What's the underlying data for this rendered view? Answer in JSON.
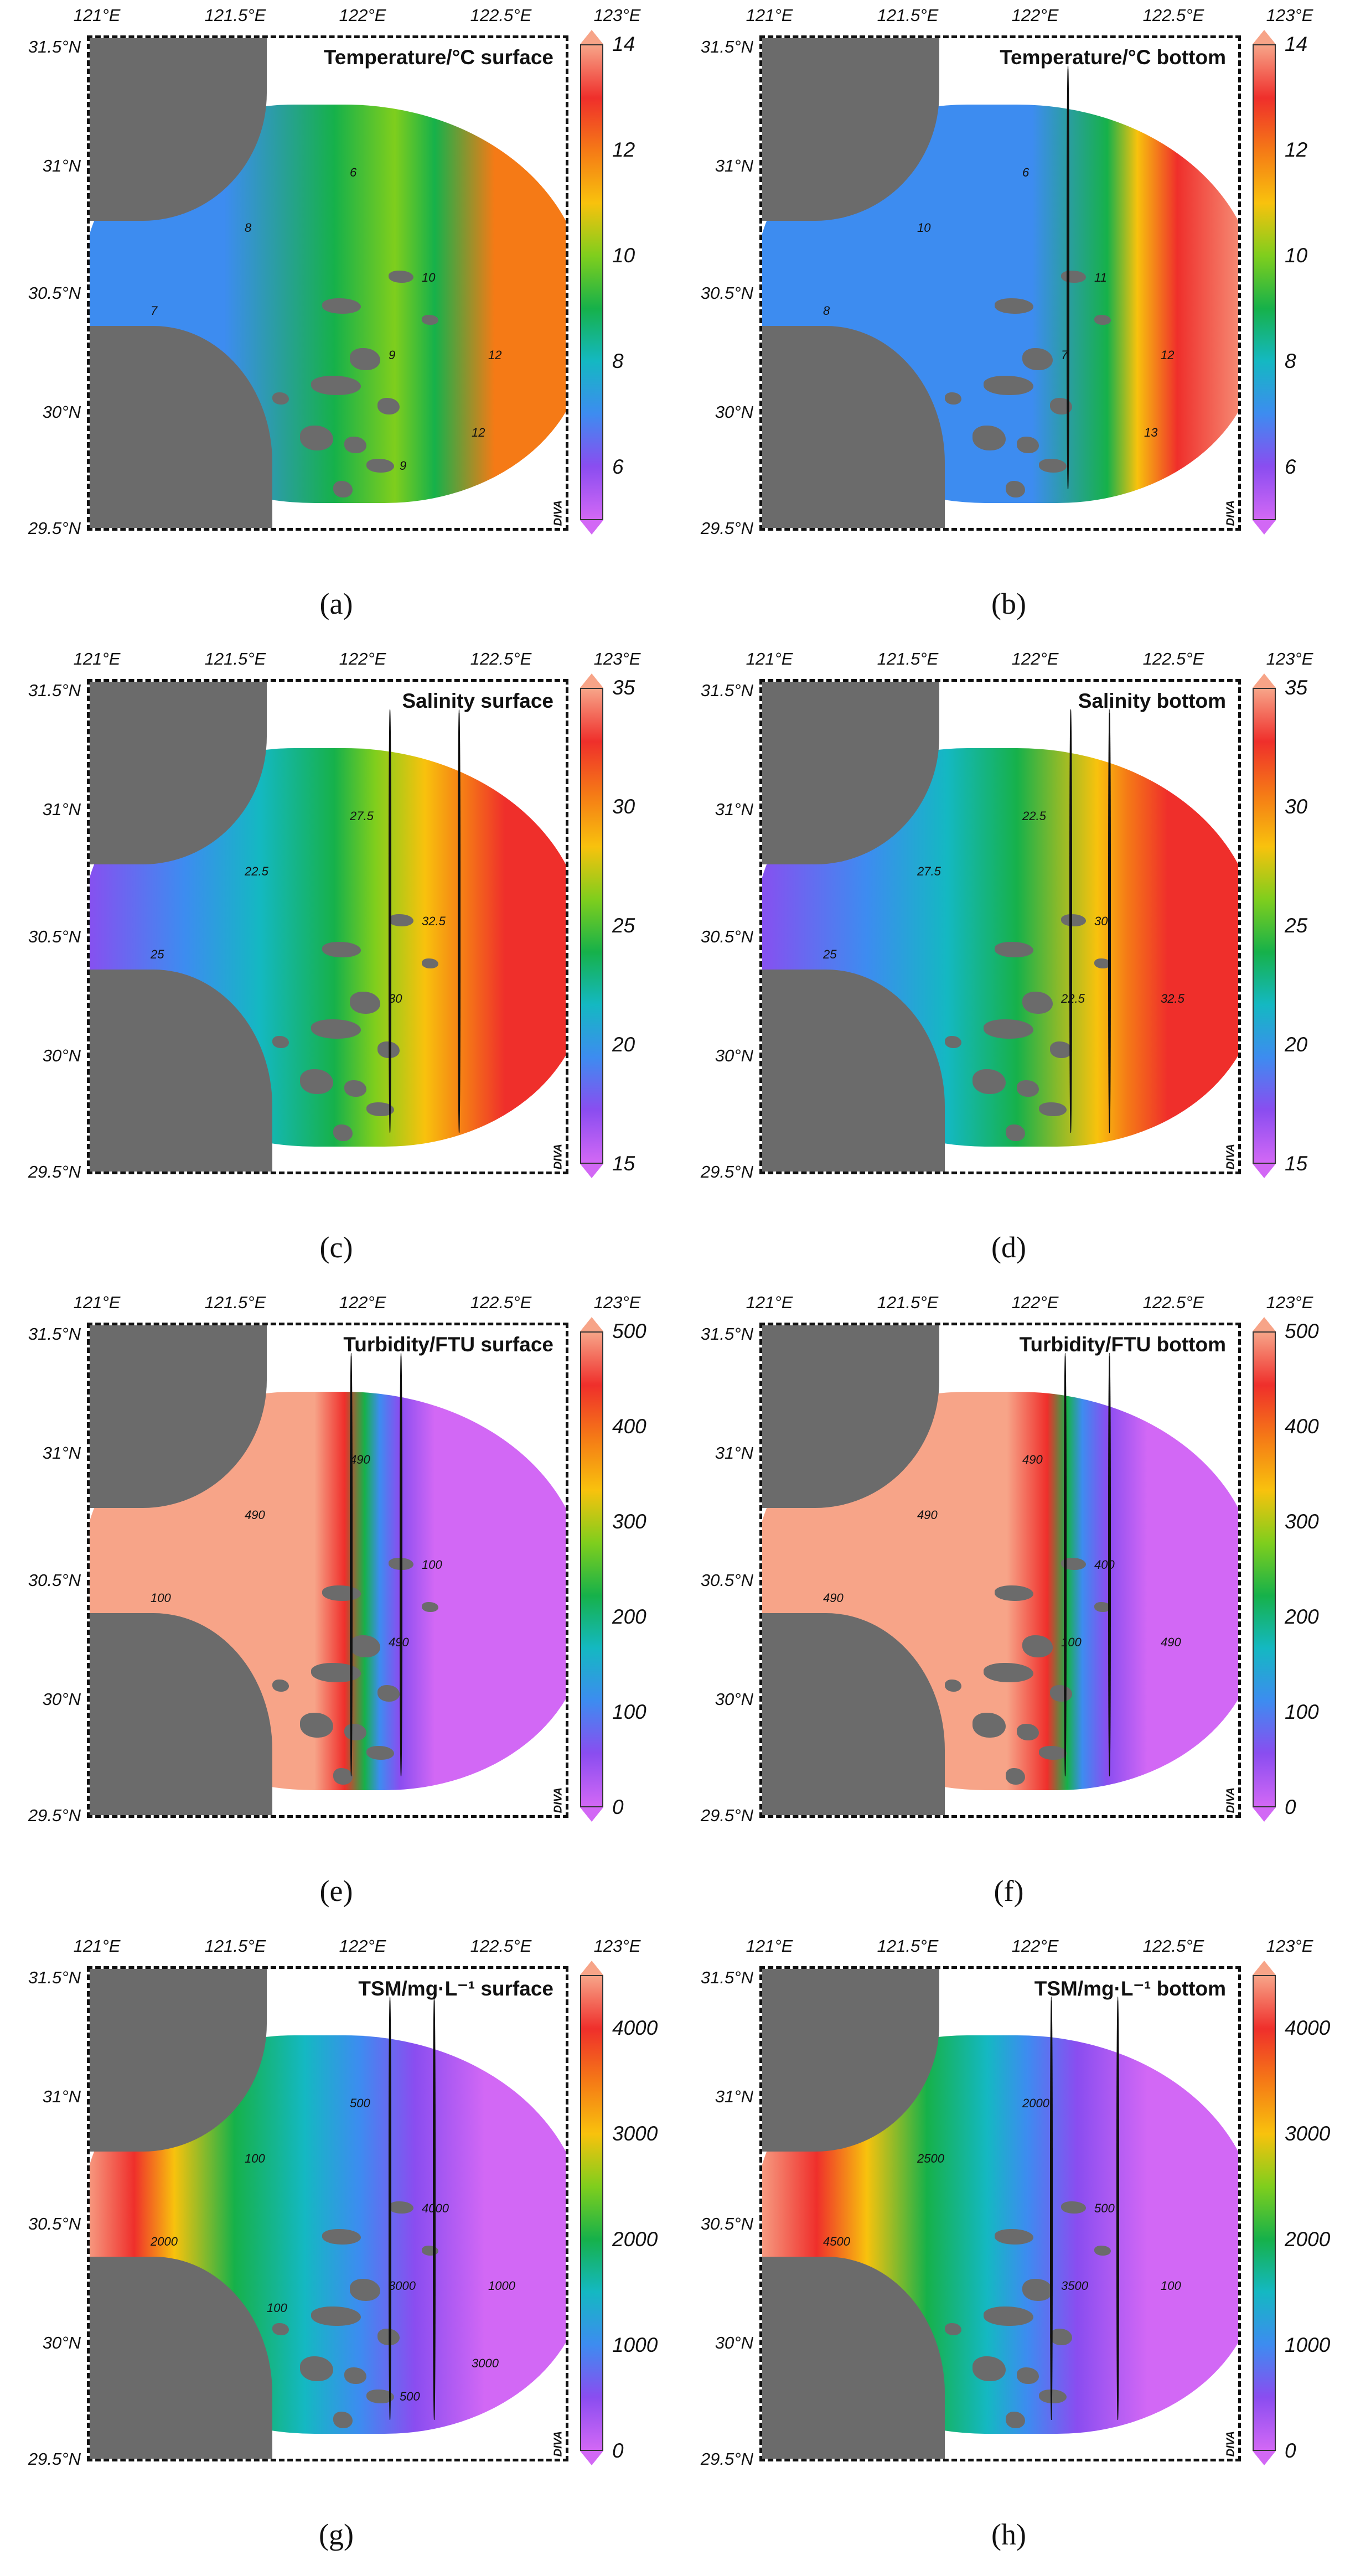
{
  "x_ticks": [
    "121°E",
    "121.5°E",
    "122°E",
    "122.5°E",
    "123°E"
  ],
  "y_ticks": [
    "31.5°N",
    "31°N",
    "30.5°N",
    "30°N",
    "29.5°N"
  ],
  "watermark": "Ocean Data View / DIVA",
  "colors": {
    "land": "#6b6b6b",
    "frame": "#111111",
    "colormap": [
      "#d268f5",
      "#8a4df0",
      "#3d8cf0",
      "#14b8c2",
      "#16b14a",
      "#7fce1d",
      "#f8c20d",
      "#f57a16",
      "#ef2f2b",
      "#f7a488"
    ]
  },
  "chart_data": [
    {
      "type": "heatmap",
      "panel": "a",
      "title": "Temperature/°C surface",
      "variable": "Temperature",
      "unit": "°C",
      "layer": "surface",
      "colorbar_ticks": [
        "14",
        "12",
        "10",
        "8",
        "6"
      ],
      "colorbar_range": [
        5,
        14
      ],
      "contour_labels": [
        "6",
        "8",
        "7",
        "9",
        "10",
        "12",
        "12",
        "9"
      ],
      "xlim": [
        121,
        123.25
      ],
      "ylim": [
        29.5,
        31.5
      ]
    },
    {
      "type": "heatmap",
      "panel": "b",
      "title": "Temperature/°C bottom",
      "variable": "Temperature",
      "unit": "°C",
      "layer": "bottom",
      "colorbar_ticks": [
        "14",
        "12",
        "10",
        "8",
        "6"
      ],
      "colorbar_range": [
        5,
        14
      ],
      "contour_labels": [
        "6",
        "10",
        "8",
        "7",
        "11",
        "12",
        "13"
      ],
      "xlim": [
        121,
        123.25
      ],
      "ylim": [
        29.5,
        31.5
      ]
    },
    {
      "type": "heatmap",
      "panel": "c",
      "title": "Salinity surface",
      "variable": "Salinity",
      "unit": "",
      "layer": "surface",
      "colorbar_ticks": [
        "35",
        "30",
        "25",
        "20",
        "15"
      ],
      "colorbar_range": [
        15,
        35
      ],
      "contour_labels": [
        "27.5",
        "22.5",
        "25",
        "30",
        "32.5"
      ],
      "xlim": [
        121,
        123.25
      ],
      "ylim": [
        29.5,
        31.5
      ]
    },
    {
      "type": "heatmap",
      "panel": "d",
      "title": "Salinity bottom",
      "variable": "Salinity",
      "unit": "",
      "layer": "bottom",
      "colorbar_ticks": [
        "35",
        "30",
        "25",
        "20",
        "15"
      ],
      "colorbar_range": [
        15,
        35
      ],
      "contour_labels": [
        "22.5",
        "27.5",
        "25",
        "22.5",
        "30",
        "32.5"
      ],
      "xlim": [
        121,
        123.25
      ],
      "ylim": [
        29.5,
        31.5
      ]
    },
    {
      "type": "heatmap",
      "panel": "e",
      "title": "Turbidity/FTU surface",
      "variable": "Turbidity",
      "unit": "FTU",
      "layer": "surface",
      "colorbar_ticks": [
        "500",
        "400",
        "300",
        "200",
        "100",
        "0"
      ],
      "colorbar_range": [
        0,
        500
      ],
      "contour_labels": [
        "490",
        "490",
        "100",
        "490",
        "100"
      ],
      "xlim": [
        121,
        123.25
      ],
      "ylim": [
        29.5,
        31.5
      ]
    },
    {
      "type": "heatmap",
      "panel": "f",
      "title": "Turbidity/FTU bottom",
      "variable": "Turbidity",
      "unit": "FTU",
      "layer": "bottom",
      "colorbar_ticks": [
        "500",
        "400",
        "300",
        "200",
        "100",
        "0"
      ],
      "colorbar_range": [
        0,
        500
      ],
      "contour_labels": [
        "490",
        "490",
        "490",
        "100",
        "400",
        "490"
      ],
      "xlim": [
        121,
        123.25
      ],
      "ylim": [
        29.5,
        31.5
      ]
    },
    {
      "type": "heatmap",
      "panel": "g",
      "title": "TSM/mg·L⁻¹ surface",
      "variable": "TSM",
      "unit": "mg·L⁻¹",
      "layer": "surface",
      "colorbar_ticks": [
        "4000",
        "3000",
        "2000",
        "1000",
        "0"
      ],
      "colorbar_range": [
        0,
        4500
      ],
      "contour_labels": [
        "500",
        "100",
        "2000",
        "3000",
        "4000",
        "1000",
        "3000",
        "500",
        "100"
      ],
      "xlim": [
        121,
        123.25
      ],
      "ylim": [
        29.5,
        31.5
      ]
    },
    {
      "type": "heatmap",
      "panel": "h",
      "title": "TSM/mg·L⁻¹ bottom",
      "variable": "TSM",
      "unit": "mg·L⁻¹",
      "layer": "bottom",
      "colorbar_ticks": [
        "4000",
        "3000",
        "2000",
        "1000",
        "0"
      ],
      "colorbar_range": [
        0,
        4500
      ],
      "contour_labels": [
        "2000",
        "2500",
        "4500",
        "3500",
        "500",
        "100"
      ],
      "xlim": [
        121,
        123.25
      ],
      "ylim": [
        29.5,
        31.5
      ]
    }
  ],
  "panel_labels": [
    "(a)",
    "(b)",
    "(c)",
    "(d)",
    "(e)",
    "(f)",
    "(g)",
    "(h)"
  ]
}
